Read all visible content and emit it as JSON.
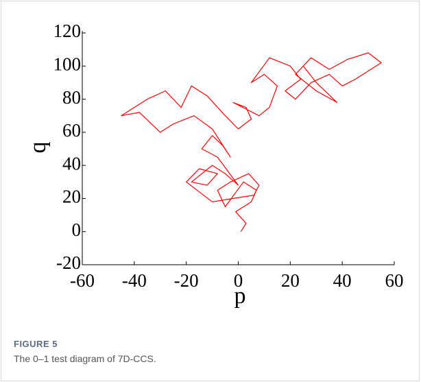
{
  "chart_data": {
    "type": "line",
    "xlabel": "p",
    "ylabel": "q",
    "xlim": [
      -60,
      60
    ],
    "xticks": [
      -60,
      -40,
      -20,
      0,
      20,
      40,
      60
    ],
    "ylim": [
      -20,
      120
    ],
    "yticks": [
      -20,
      0,
      20,
      40,
      60,
      80,
      100,
      120
    ],
    "series": [
      {
        "color": "#ff0000",
        "x": [
          1,
          3,
          -1,
          5,
          7,
          2,
          -5,
          -8,
          -3,
          4,
          8,
          6,
          -2,
          -10,
          -20,
          -15,
          -8,
          -12,
          -18,
          -10,
          -5,
          0,
          -8,
          -14,
          -10,
          -6,
          -3,
          -10,
          -17,
          -25,
          -30,
          -38,
          -45,
          -35,
          -28,
          -22,
          -18,
          -12,
          -5,
          0,
          5,
          3,
          -2,
          8,
          12,
          15,
          10,
          5,
          12,
          20,
          24,
          18,
          22,
          28,
          35,
          40,
          45,
          55,
          50,
          42,
          35,
          28,
          22,
          30,
          38,
          30,
          25
        ],
        "values": [
          0,
          5,
          12,
          18,
          25,
          30,
          15,
          25,
          30,
          35,
          28,
          22,
          20,
          18,
          30,
          38,
          35,
          28,
          30,
          40,
          35,
          28,
          45,
          50,
          58,
          52,
          45,
          62,
          70,
          65,
          60,
          72,
          70,
          80,
          85,
          75,
          88,
          82,
          70,
          62,
          68,
          75,
          78,
          70,
          75,
          88,
          95,
          90,
          105,
          100,
          92,
          85,
          80,
          90,
          95,
          88,
          92,
          102,
          108,
          104,
          98,
          105,
          95,
          85,
          78,
          90,
          100
        ]
      }
    ]
  },
  "caption": {
    "label": "FIGURE 5",
    "text": "The 0–1 test diagram of 7D-CCS."
  }
}
